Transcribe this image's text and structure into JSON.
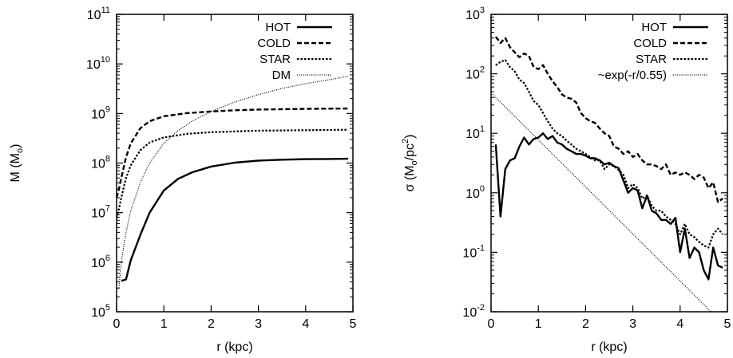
{
  "chart_data": [
    {
      "type": "line",
      "xlabel": "r (kpc)",
      "ylabel": "M (M",
      "ylabel_sub": "o",
      "ylabel_end": ")",
      "xlim": [
        0,
        5
      ],
      "ylim_log10": [
        5,
        11
      ],
      "yscale": "log",
      "grid": false,
      "legend_position": "top-right",
      "x_ticks": [
        "0",
        "1",
        "2",
        "3",
        "4",
        "5"
      ],
      "y_ticks": [
        {
          "base": "10",
          "exp": "5"
        },
        {
          "base": "10",
          "exp": "6"
        },
        {
          "base": "10",
          "exp": "7"
        },
        {
          "base": "10",
          "exp": "8"
        },
        {
          "base": "10",
          "exp": "9"
        },
        {
          "base": "10",
          "exp": "10"
        },
        {
          "base": "10",
          "exp": "11"
        }
      ],
      "series": [
        {
          "name": "HOT",
          "style": "solid",
          "x": [
            0.1,
            0.2,
            0.3,
            0.5,
            0.7,
            1.0,
            1.3,
            1.6,
            2.0,
            2.5,
            3.0,
            3.5,
            4.0,
            4.5,
            4.9
          ],
          "y": [
            420000.0,
            450000.0,
            1100000.0,
            3500000.0,
            10000000.0,
            28000000.0,
            48000000.0,
            65000000.0,
            85000000.0,
            102000000.0,
            112000000.0,
            117000000.0,
            120000000.0,
            121000000.0,
            122000000.0
          ]
        },
        {
          "name": "COLD",
          "style": "dashed",
          "x": [
            0.0,
            0.05,
            0.1,
            0.2,
            0.3,
            0.5,
            0.7,
            1.0,
            1.5,
            2.0,
            2.5,
            3.0,
            4.0,
            4.9
          ],
          "y": [
            20000000.0,
            30000000.0,
            50000000.0,
            130000000.0,
            250000000.0,
            500000000.0,
            700000000.0,
            880000000.0,
            1020000000.0,
            1100000000.0,
            1160000000.0,
            1200000000.0,
            1240000000.0,
            1260000000.0
          ]
        },
        {
          "name": "STAR",
          "style": "dotted",
          "x": [
            0.0,
            0.05,
            0.1,
            0.2,
            0.3,
            0.5,
            0.7,
            1.0,
            1.5,
            2.0,
            3.0,
            4.0,
            4.9
          ],
          "y": [
            8000000.0,
            12000000.0,
            20000000.0,
            50000000.0,
            90000000.0,
            180000000.0,
            260000000.0,
            330000000.0,
            390000000.0,
            420000000.0,
            450000000.0,
            460000000.0,
            470000000.0
          ]
        },
        {
          "name": "DM",
          "style": "fine-dotted",
          "x": [
            0.05,
            0.1,
            0.2,
            0.3,
            0.5,
            0.7,
            1.0,
            1.3,
            1.6,
            2.0,
            2.5,
            3.0,
            3.5,
            4.0,
            4.5,
            4.9
          ],
          "y": [
            300000.0,
            1000000.0,
            4000000.0,
            11000000.0,
            40000000.0,
            100000000.0,
            250000000.0,
            450000000.0,
            700000000.0,
            1100000000.0,
            1700000000.0,
            2400000000.0,
            3200000000.0,
            4000000000.0,
            4800000000.0,
            5600000000.0
          ]
        }
      ]
    },
    {
      "type": "line",
      "xlabel": "r (kpc)",
      "ylabel": "σ (M",
      "ylabel_sub": "o",
      "ylabel_mid": "/pc",
      "ylabel_sup": "2",
      "ylabel_end": ")",
      "xlim": [
        0,
        5
      ],
      "ylim_log10": [
        -2,
        3
      ],
      "yscale": "log",
      "grid": false,
      "legend_position": "top-right",
      "x_ticks": [
        "0",
        "1",
        "2",
        "3",
        "4",
        "5"
      ],
      "y_ticks": [
        {
          "base": "10",
          "exp": "-2"
        },
        {
          "base": "10",
          "exp": "-1"
        },
        {
          "base": "10",
          "exp": "0"
        },
        {
          "base": "10",
          "exp": "1"
        },
        {
          "base": "10",
          "exp": "2"
        },
        {
          "base": "10",
          "exp": "3"
        }
      ],
      "series": [
        {
          "name": "HOT",
          "style": "solid",
          "x": [
            0.1,
            0.2,
            0.3,
            0.4,
            0.5,
            0.6,
            0.7,
            0.8,
            0.9,
            1.0,
            1.1,
            1.2,
            1.3,
            1.4,
            1.5,
            1.6,
            1.7,
            1.8,
            1.9,
            2.0,
            2.1,
            2.2,
            2.3,
            2.4,
            2.5,
            2.6,
            2.7,
            2.8,
            2.9,
            3.0,
            3.1,
            3.2,
            3.3,
            3.4,
            3.5,
            3.6,
            3.7,
            3.8,
            3.9,
            4.0,
            4.1,
            4.2,
            4.3,
            4.4,
            4.5,
            4.6,
            4.7,
            4.8,
            4.9
          ],
          "y": [
            6.5,
            0.4,
            2.5,
            3.5,
            3.8,
            6.0,
            8.5,
            6.5,
            8.0,
            8.5,
            10.0,
            8.0,
            9.0,
            7.0,
            6.5,
            5.5,
            5.0,
            4.5,
            4.5,
            4.2,
            3.8,
            3.8,
            3.5,
            3.0,
            3.2,
            2.8,
            2.6,
            1.6,
            1.0,
            1.2,
            1.1,
            0.55,
            0.9,
            0.5,
            0.45,
            0.35,
            0.35,
            0.3,
            0.38,
            0.1,
            0.25,
            0.08,
            0.12,
            0.1,
            0.05,
            0.035,
            0.12,
            0.06,
            0.055
          ]
        },
        {
          "name": "COLD",
          "style": "dashed",
          "x": [
            0.1,
            0.2,
            0.3,
            0.4,
            0.5,
            0.6,
            0.7,
            0.8,
            0.9,
            1.0,
            1.1,
            1.2,
            1.3,
            1.4,
            1.5,
            1.6,
            1.7,
            1.8,
            1.9,
            2.0,
            2.1,
            2.2,
            2.3,
            2.4,
            2.5,
            2.6,
            2.7,
            2.8,
            2.9,
            3.0,
            3.1,
            3.2,
            3.3,
            3.4,
            3.5,
            3.6,
            3.7,
            3.8,
            3.9,
            4.0,
            4.1,
            4.2,
            4.3,
            4.4,
            4.5,
            4.6,
            4.7,
            4.8,
            4.9
          ],
          "y": [
            420,
            330,
            400,
            280,
            230,
            190,
            220,
            200,
            130,
            120,
            140,
            100,
            75,
            60,
            45,
            40,
            38,
            33,
            22,
            18,
            16,
            15,
            12,
            10,
            9.0,
            6.0,
            5.5,
            4.5,
            5.0,
            4.0,
            4.5,
            3.5,
            3.0,
            3.0,
            2.8,
            2.5,
            3.0,
            2.0,
            2.2,
            2.0,
            2.2,
            2.0,
            1.7,
            2.0,
            1.8,
            1.2,
            1.5,
            0.7,
            0.8
          ]
        },
        {
          "name": "STAR",
          "style": "dotted",
          "x": [
            0.1,
            0.2,
            0.3,
            0.4,
            0.5,
            0.6,
            0.7,
            0.8,
            0.9,
            1.0,
            1.1,
            1.2,
            1.3,
            1.4,
            1.5,
            1.6,
            1.7,
            1.8,
            1.9,
            2.0,
            2.1,
            2.2,
            2.3,
            2.4,
            2.5,
            2.6,
            2.7,
            2.8,
            2.9,
            3.0,
            3.1,
            3.2,
            3.3,
            3.4,
            3.5,
            3.6,
            3.7,
            3.8,
            3.9,
            4.0,
            4.1,
            4.2,
            4.3,
            4.4,
            4.5,
            4.6,
            4.7,
            4.8,
            4.9
          ],
          "y": [
            140,
            160,
            170,
            130,
            110,
            80,
            70,
            50,
            35,
            30,
            22,
            16,
            12,
            10,
            9,
            7.5,
            6.5,
            5.5,
            5.0,
            4.5,
            4.0,
            3.5,
            3.5,
            2.5,
            3.0,
            2.8,
            2.4,
            2.0,
            1.2,
            1.4,
            1.2,
            0.8,
            0.9,
            0.6,
            0.5,
            0.5,
            0.4,
            0.35,
            0.3,
            0.2,
            0.3,
            0.2,
            0.18,
            0.15,
            0.13,
            0.12,
            0.2,
            0.25,
            0.2
          ]
        },
        {
          "name": "~exp(-r/0.55)",
          "style": "fine-dotted",
          "x": [
            0.0,
            4.7
          ],
          "y": [
            48,
            0.0092
          ]
        }
      ]
    }
  ]
}
